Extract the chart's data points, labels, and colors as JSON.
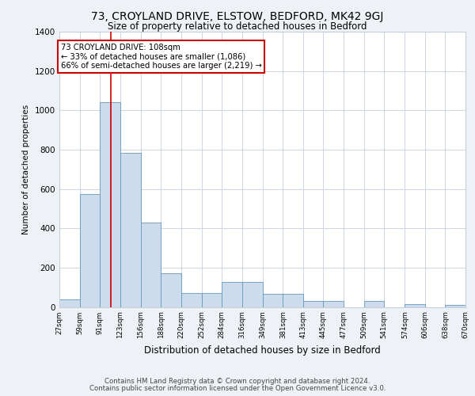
{
  "title_line1": "73, CROYLAND DRIVE, ELSTOW, BEDFORD, MK42 9GJ",
  "title_line2": "Size of property relative to detached houses in Bedford",
  "xlabel": "Distribution of detached houses by size in Bedford",
  "ylabel": "Number of detached properties",
  "footer_line1": "Contains HM Land Registry data © Crown copyright and database right 2024.",
  "footer_line2": "Contains public sector information licensed under the Open Government Licence v3.0.",
  "annotation_line1": "73 CROYLAND DRIVE: 108sqm",
  "annotation_line2": "← 33% of detached houses are smaller (1,086)",
  "annotation_line3": "66% of semi-detached houses are larger (2,219) →",
  "bar_edges": [
    27,
    59,
    91,
    123,
    156,
    188,
    220,
    252,
    284,
    316,
    349,
    381,
    413,
    445,
    477,
    509,
    541,
    574,
    606,
    638,
    670
  ],
  "bar_heights": [
    40,
    575,
    1040,
    785,
    430,
    170,
    70,
    70,
    125,
    125,
    65,
    65,
    30,
    30,
    0,
    30,
    0,
    15,
    0,
    10
  ],
  "bar_color": "#ccdcec",
  "bar_edge_color": "#6699bb",
  "vline_x": 108,
  "vline_color": "#cc0000",
  "ylim": [
    0,
    1400
  ],
  "yticks": [
    0,
    200,
    400,
    600,
    800,
    1000,
    1200,
    1400
  ],
  "annotation_box_color": "#cc0000",
  "background_color": "#eef2f7",
  "plot_bg_color": "#ffffff",
  "grid_color": "#c5d0dc"
}
